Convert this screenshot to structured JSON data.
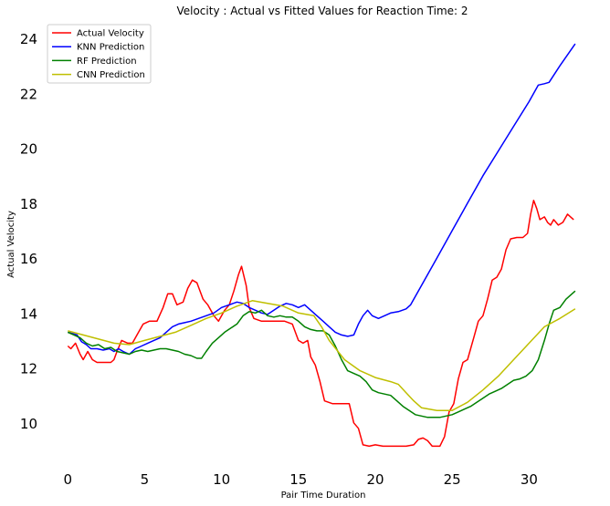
{
  "chart_data": {
    "type": "line",
    "title": "Velocity : Actual vs Fitted Values for Reaction Time: 2",
    "xlabel": "Pair Time Duration",
    "ylabel": "Actual Velocity",
    "xlim": [
      -1.5,
      33.6
    ],
    "ylim": [
      8.4,
      24.6
    ],
    "xticks": [
      0,
      5,
      10,
      15,
      20,
      25,
      30
    ],
    "yticks": [
      10,
      12,
      14,
      16,
      18,
      20,
      22,
      24
    ],
    "grid": false,
    "legend_position": "top-left",
    "series": [
      {
        "name": "Actual Velocity",
        "color": "#ff0000",
        "points": [
          [
            0,
            12.8
          ],
          [
            0.2,
            12.7
          ],
          [
            0.5,
            12.9
          ],
          [
            0.8,
            12.5
          ],
          [
            1,
            12.3
          ],
          [
            1.3,
            12.6
          ],
          [
            1.6,
            12.3
          ],
          [
            1.9,
            12.2
          ],
          [
            2.3,
            12.2
          ],
          [
            2.8,
            12.2
          ],
          [
            3,
            12.3
          ],
          [
            3.2,
            12.6
          ],
          [
            3.5,
            13.0
          ],
          [
            3.9,
            12.9
          ],
          [
            4.2,
            12.9
          ],
          [
            4.6,
            13.3
          ],
          [
            4.9,
            13.6
          ],
          [
            5.3,
            13.7
          ],
          [
            5.8,
            13.7
          ],
          [
            6.2,
            14.2
          ],
          [
            6.5,
            14.7
          ],
          [
            6.8,
            14.7
          ],
          [
            7.1,
            14.3
          ],
          [
            7.5,
            14.4
          ],
          [
            7.8,
            14.9
          ],
          [
            8.1,
            15.2
          ],
          [
            8.4,
            15.1
          ],
          [
            8.8,
            14.5
          ],
          [
            9.1,
            14.3
          ],
          [
            9.5,
            13.9
          ],
          [
            9.8,
            13.7
          ],
          [
            10.2,
            14.1
          ],
          [
            10.5,
            14.3
          ],
          [
            10.8,
            14.8
          ],
          [
            11.1,
            15.4
          ],
          [
            11.3,
            15.7
          ],
          [
            11.6,
            15.0
          ],
          [
            11.8,
            14.2
          ],
          [
            12.1,
            13.8
          ],
          [
            12.6,
            13.7
          ],
          [
            13.1,
            13.7
          ],
          [
            13.6,
            13.7
          ],
          [
            14.1,
            13.7
          ],
          [
            14.6,
            13.6
          ],
          [
            15,
            13.0
          ],
          [
            15.3,
            12.9
          ],
          [
            15.6,
            13.0
          ],
          [
            15.8,
            12.4
          ],
          [
            16.1,
            12.1
          ],
          [
            16.4,
            11.5
          ],
          [
            16.7,
            10.8
          ],
          [
            17.2,
            10.7
          ],
          [
            17.8,
            10.7
          ],
          [
            18.3,
            10.7
          ],
          [
            18.6,
            10.0
          ],
          [
            18.9,
            9.8
          ],
          [
            19.2,
            9.2
          ],
          [
            19.6,
            9.15
          ],
          [
            20,
            9.2
          ],
          [
            20.5,
            9.15
          ],
          [
            21,
            9.15
          ],
          [
            21.5,
            9.15
          ],
          [
            22,
            9.15
          ],
          [
            22.5,
            9.2
          ],
          [
            22.8,
            9.4
          ],
          [
            23.1,
            9.45
          ],
          [
            23.4,
            9.35
          ],
          [
            23.7,
            9.15
          ],
          [
            24.2,
            9.15
          ],
          [
            24.5,
            9.5
          ],
          [
            24.8,
            10.4
          ],
          [
            25.1,
            10.7
          ],
          [
            25.4,
            11.6
          ],
          [
            25.7,
            12.2
          ],
          [
            26,
            12.3
          ],
          [
            26.4,
            13.1
          ],
          [
            26.7,
            13.7
          ],
          [
            27,
            13.9
          ],
          [
            27.3,
            14.5
          ],
          [
            27.6,
            15.2
          ],
          [
            27.9,
            15.3
          ],
          [
            28.2,
            15.6
          ],
          [
            28.5,
            16.3
          ],
          [
            28.8,
            16.7
          ],
          [
            29.2,
            16.75
          ],
          [
            29.6,
            16.75
          ],
          [
            29.9,
            16.9
          ],
          [
            30.1,
            17.6
          ],
          [
            30.3,
            18.1
          ],
          [
            30.5,
            17.8
          ],
          [
            30.7,
            17.4
          ],
          [
            31,
            17.5
          ],
          [
            31.2,
            17.3
          ],
          [
            31.4,
            17.2
          ],
          [
            31.6,
            17.4
          ],
          [
            31.9,
            17.2
          ],
          [
            32.2,
            17.3
          ],
          [
            32.5,
            17.6
          ],
          [
            32.7,
            17.5
          ],
          [
            32.9,
            17.4
          ]
        ]
      },
      {
        "name": "KNN  Prediction",
        "color": "#0000ff",
        "points": [
          [
            0,
            13.3
          ],
          [
            0.3,
            13.25
          ],
          [
            0.6,
            13.2
          ],
          [
            0.9,
            12.95
          ],
          [
            1.2,
            12.85
          ],
          [
            1.5,
            12.7
          ],
          [
            1.9,
            12.7
          ],
          [
            2.3,
            12.65
          ],
          [
            2.7,
            12.7
          ],
          [
            3,
            12.6
          ],
          [
            3.3,
            12.7
          ],
          [
            3.6,
            12.6
          ],
          [
            4,
            12.5
          ],
          [
            4.4,
            12.7
          ],
          [
            4.8,
            12.8
          ],
          [
            5.2,
            12.9
          ],
          [
            5.6,
            13.0
          ],
          [
            6,
            13.1
          ],
          [
            6.4,
            13.3
          ],
          [
            6.8,
            13.5
          ],
          [
            7.2,
            13.6
          ],
          [
            7.6,
            13.65
          ],
          [
            8,
            13.7
          ],
          [
            8.5,
            13.8
          ],
          [
            9,
            13.9
          ],
          [
            9.5,
            14.0
          ],
          [
            10,
            14.2
          ],
          [
            10.5,
            14.3
          ],
          [
            11,
            14.4
          ],
          [
            11.4,
            14.35
          ],
          [
            11.8,
            14.2
          ],
          [
            12.2,
            14.1
          ],
          [
            12.6,
            14.0
          ],
          [
            13,
            13.95
          ],
          [
            13.4,
            14.1
          ],
          [
            13.8,
            14.25
          ],
          [
            14.2,
            14.35
          ],
          [
            14.6,
            14.3
          ],
          [
            15,
            14.2
          ],
          [
            15.4,
            14.3
          ],
          [
            15.8,
            14.1
          ],
          [
            16.2,
            13.9
          ],
          [
            16.6,
            13.7
          ],
          [
            17,
            13.5
          ],
          [
            17.4,
            13.3
          ],
          [
            17.8,
            13.2
          ],
          [
            18.2,
            13.15
          ],
          [
            18.6,
            13.2
          ],
          [
            18.9,
            13.6
          ],
          [
            19.2,
            13.9
          ],
          [
            19.5,
            14.1
          ],
          [
            19.8,
            13.9
          ],
          [
            20.2,
            13.8
          ],
          [
            20.6,
            13.9
          ],
          [
            21,
            14.0
          ],
          [
            21.5,
            14.05
          ],
          [
            22,
            14.15
          ],
          [
            22.3,
            14.3
          ],
          [
            33,
            23.8
          ],
          [
            23,
            15.0
          ],
          [
            24,
            16.0
          ],
          [
            25,
            17.0
          ],
          [
            26,
            18.0
          ],
          [
            27,
            19.0
          ],
          [
            28,
            19.9
          ],
          [
            29,
            20.8
          ],
          [
            30,
            21.7
          ],
          [
            30.6,
            22.3
          ],
          [
            31,
            22.35
          ],
          [
            31.3,
            22.4
          ],
          [
            32,
            23.0
          ]
        ]
      },
      {
        "name": "RF  Prediction",
        "color": "#008000",
        "points": [
          [
            0,
            13.3
          ],
          [
            0.4,
            13.2
          ],
          [
            0.8,
            13.1
          ],
          [
            1.2,
            12.9
          ],
          [
            1.6,
            12.8
          ],
          [
            2,
            12.85
          ],
          [
            2.4,
            12.7
          ],
          [
            2.8,
            12.75
          ],
          [
            3.2,
            12.6
          ],
          [
            3.6,
            12.55
          ],
          [
            4,
            12.5
          ],
          [
            4.4,
            12.6
          ],
          [
            4.8,
            12.65
          ],
          [
            5.2,
            12.6
          ],
          [
            5.6,
            12.65
          ],
          [
            6,
            12.7
          ],
          [
            6.4,
            12.7
          ],
          [
            6.8,
            12.65
          ],
          [
            7.2,
            12.6
          ],
          [
            7.6,
            12.5
          ],
          [
            8,
            12.45
          ],
          [
            8.4,
            12.35
          ],
          [
            8.7,
            12.35
          ],
          [
            9,
            12.6
          ],
          [
            9.4,
            12.9
          ],
          [
            9.8,
            13.1
          ],
          [
            10.2,
            13.3
          ],
          [
            10.6,
            13.45
          ],
          [
            11,
            13.6
          ],
          [
            11.4,
            13.9
          ],
          [
            11.8,
            14.05
          ],
          [
            12.2,
            14.0
          ],
          [
            12.6,
            14.1
          ],
          [
            13,
            13.9
          ],
          [
            13.4,
            13.85
          ],
          [
            13.8,
            13.9
          ],
          [
            14.2,
            13.85
          ],
          [
            14.6,
            13.85
          ],
          [
            15,
            13.7
          ],
          [
            15.4,
            13.5
          ],
          [
            15.8,
            13.4
          ],
          [
            16.2,
            13.35
          ],
          [
            16.6,
            13.35
          ],
          [
            17,
            13.2
          ],
          [
            17.4,
            12.8
          ],
          [
            17.8,
            12.3
          ],
          [
            18.2,
            11.9
          ],
          [
            18.6,
            11.8
          ],
          [
            19,
            11.7
          ],
          [
            19.4,
            11.5
          ],
          [
            19.8,
            11.2
          ],
          [
            20.2,
            11.1
          ],
          [
            20.6,
            11.05
          ],
          [
            21,
            11.0
          ],
          [
            21.4,
            10.8
          ],
          [
            21.8,
            10.6
          ],
          [
            22.2,
            10.45
          ],
          [
            22.6,
            10.3
          ],
          [
            23,
            10.25
          ],
          [
            23.4,
            10.2
          ],
          [
            23.8,
            10.2
          ],
          [
            24.2,
            10.2
          ],
          [
            24.6,
            10.25
          ],
          [
            25,
            10.3
          ],
          [
            25.4,
            10.4
          ],
          [
            25.8,
            10.5
          ],
          [
            26.2,
            10.6
          ],
          [
            26.6,
            10.75
          ],
          [
            27,
            10.9
          ],
          [
            27.4,
            11.05
          ],
          [
            27.8,
            11.15
          ],
          [
            28.2,
            11.25
          ],
          [
            28.6,
            11.4
          ],
          [
            29,
            11.55
          ],
          [
            29.4,
            11.6
          ],
          [
            29.8,
            11.7
          ],
          [
            30.2,
            11.9
          ],
          [
            30.6,
            12.3
          ],
          [
            31,
            13.0
          ],
          [
            31.3,
            13.6
          ],
          [
            31.6,
            14.1
          ],
          [
            32,
            14.2
          ],
          [
            32.4,
            14.5
          ],
          [
            32.8,
            14.7
          ],
          [
            33,
            14.8
          ]
        ]
      },
      {
        "name": "CNN  Prediction",
        "color": "#bfbf00",
        "points": [
          [
            0,
            13.35
          ],
          [
            1,
            13.2
          ],
          [
            2,
            13.05
          ],
          [
            3,
            12.9
          ],
          [
            4,
            12.85
          ],
          [
            5,
            13.0
          ],
          [
            6,
            13.15
          ],
          [
            7,
            13.3
          ],
          [
            8,
            13.55
          ],
          [
            9,
            13.8
          ],
          [
            10,
            14.0
          ],
          [
            11,
            14.25
          ],
          [
            12,
            14.45
          ],
          [
            13,
            14.35
          ],
          [
            14,
            14.25
          ],
          [
            15,
            14.0
          ],
          [
            16,
            13.9
          ],
          [
            16.5,
            13.5
          ],
          [
            17,
            13.0
          ],
          [
            18,
            12.3
          ],
          [
            19,
            11.9
          ],
          [
            20,
            11.65
          ],
          [
            21,
            11.5
          ],
          [
            21.5,
            11.4
          ],
          [
            22,
            11.1
          ],
          [
            22.5,
            10.8
          ],
          [
            23,
            10.55
          ],
          [
            24,
            10.45
          ],
          [
            25,
            10.45
          ],
          [
            26,
            10.75
          ],
          [
            27,
            11.2
          ],
          [
            28,
            11.7
          ],
          [
            29,
            12.3
          ],
          [
            30,
            12.9
          ],
          [
            31,
            13.5
          ],
          [
            32,
            13.8
          ],
          [
            33,
            14.15
          ]
        ]
      }
    ]
  }
}
